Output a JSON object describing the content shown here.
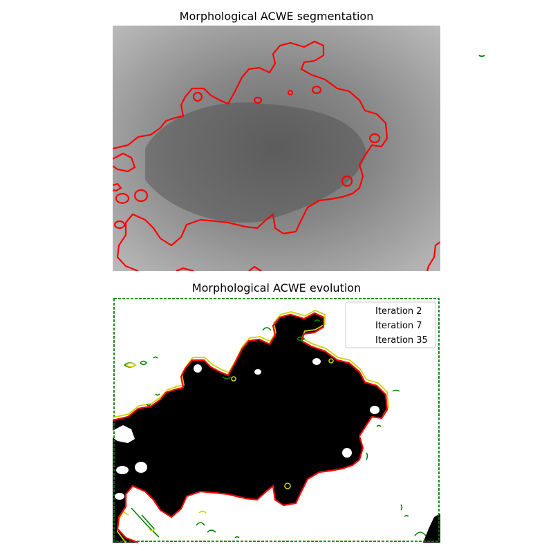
{
  "colors": {
    "final_contour": "#ff0000",
    "iteration_2": "#008000",
    "iteration_7": "#c8d400",
    "iteration_35": "#ff0000",
    "segmentation_background": "#000000"
  },
  "chart_data": [
    {
      "type": "image",
      "title": "Morphological ACWE segmentation",
      "xlabel": "",
      "ylabel": "",
      "axes_visible": false,
      "image": "grayscale skin lesion photo",
      "overlay": {
        "contour_color": "red",
        "description": "final segmentation contour"
      }
    },
    {
      "type": "contour",
      "title": "Morphological ACWE evolution",
      "xlabel": "",
      "ylabel": "",
      "axes_visible": false,
      "background": "black segmented region on white",
      "legend_position": "top-right",
      "series": [
        {
          "name": "Iteration 2",
          "color": "green",
          "linestyle": "dashed"
        },
        {
          "name": "Iteration 7",
          "color": "yellow",
          "linestyle": "solid"
        },
        {
          "name": "Iteration 35",
          "color": "red",
          "linestyle": "solid"
        }
      ]
    }
  ]
}
